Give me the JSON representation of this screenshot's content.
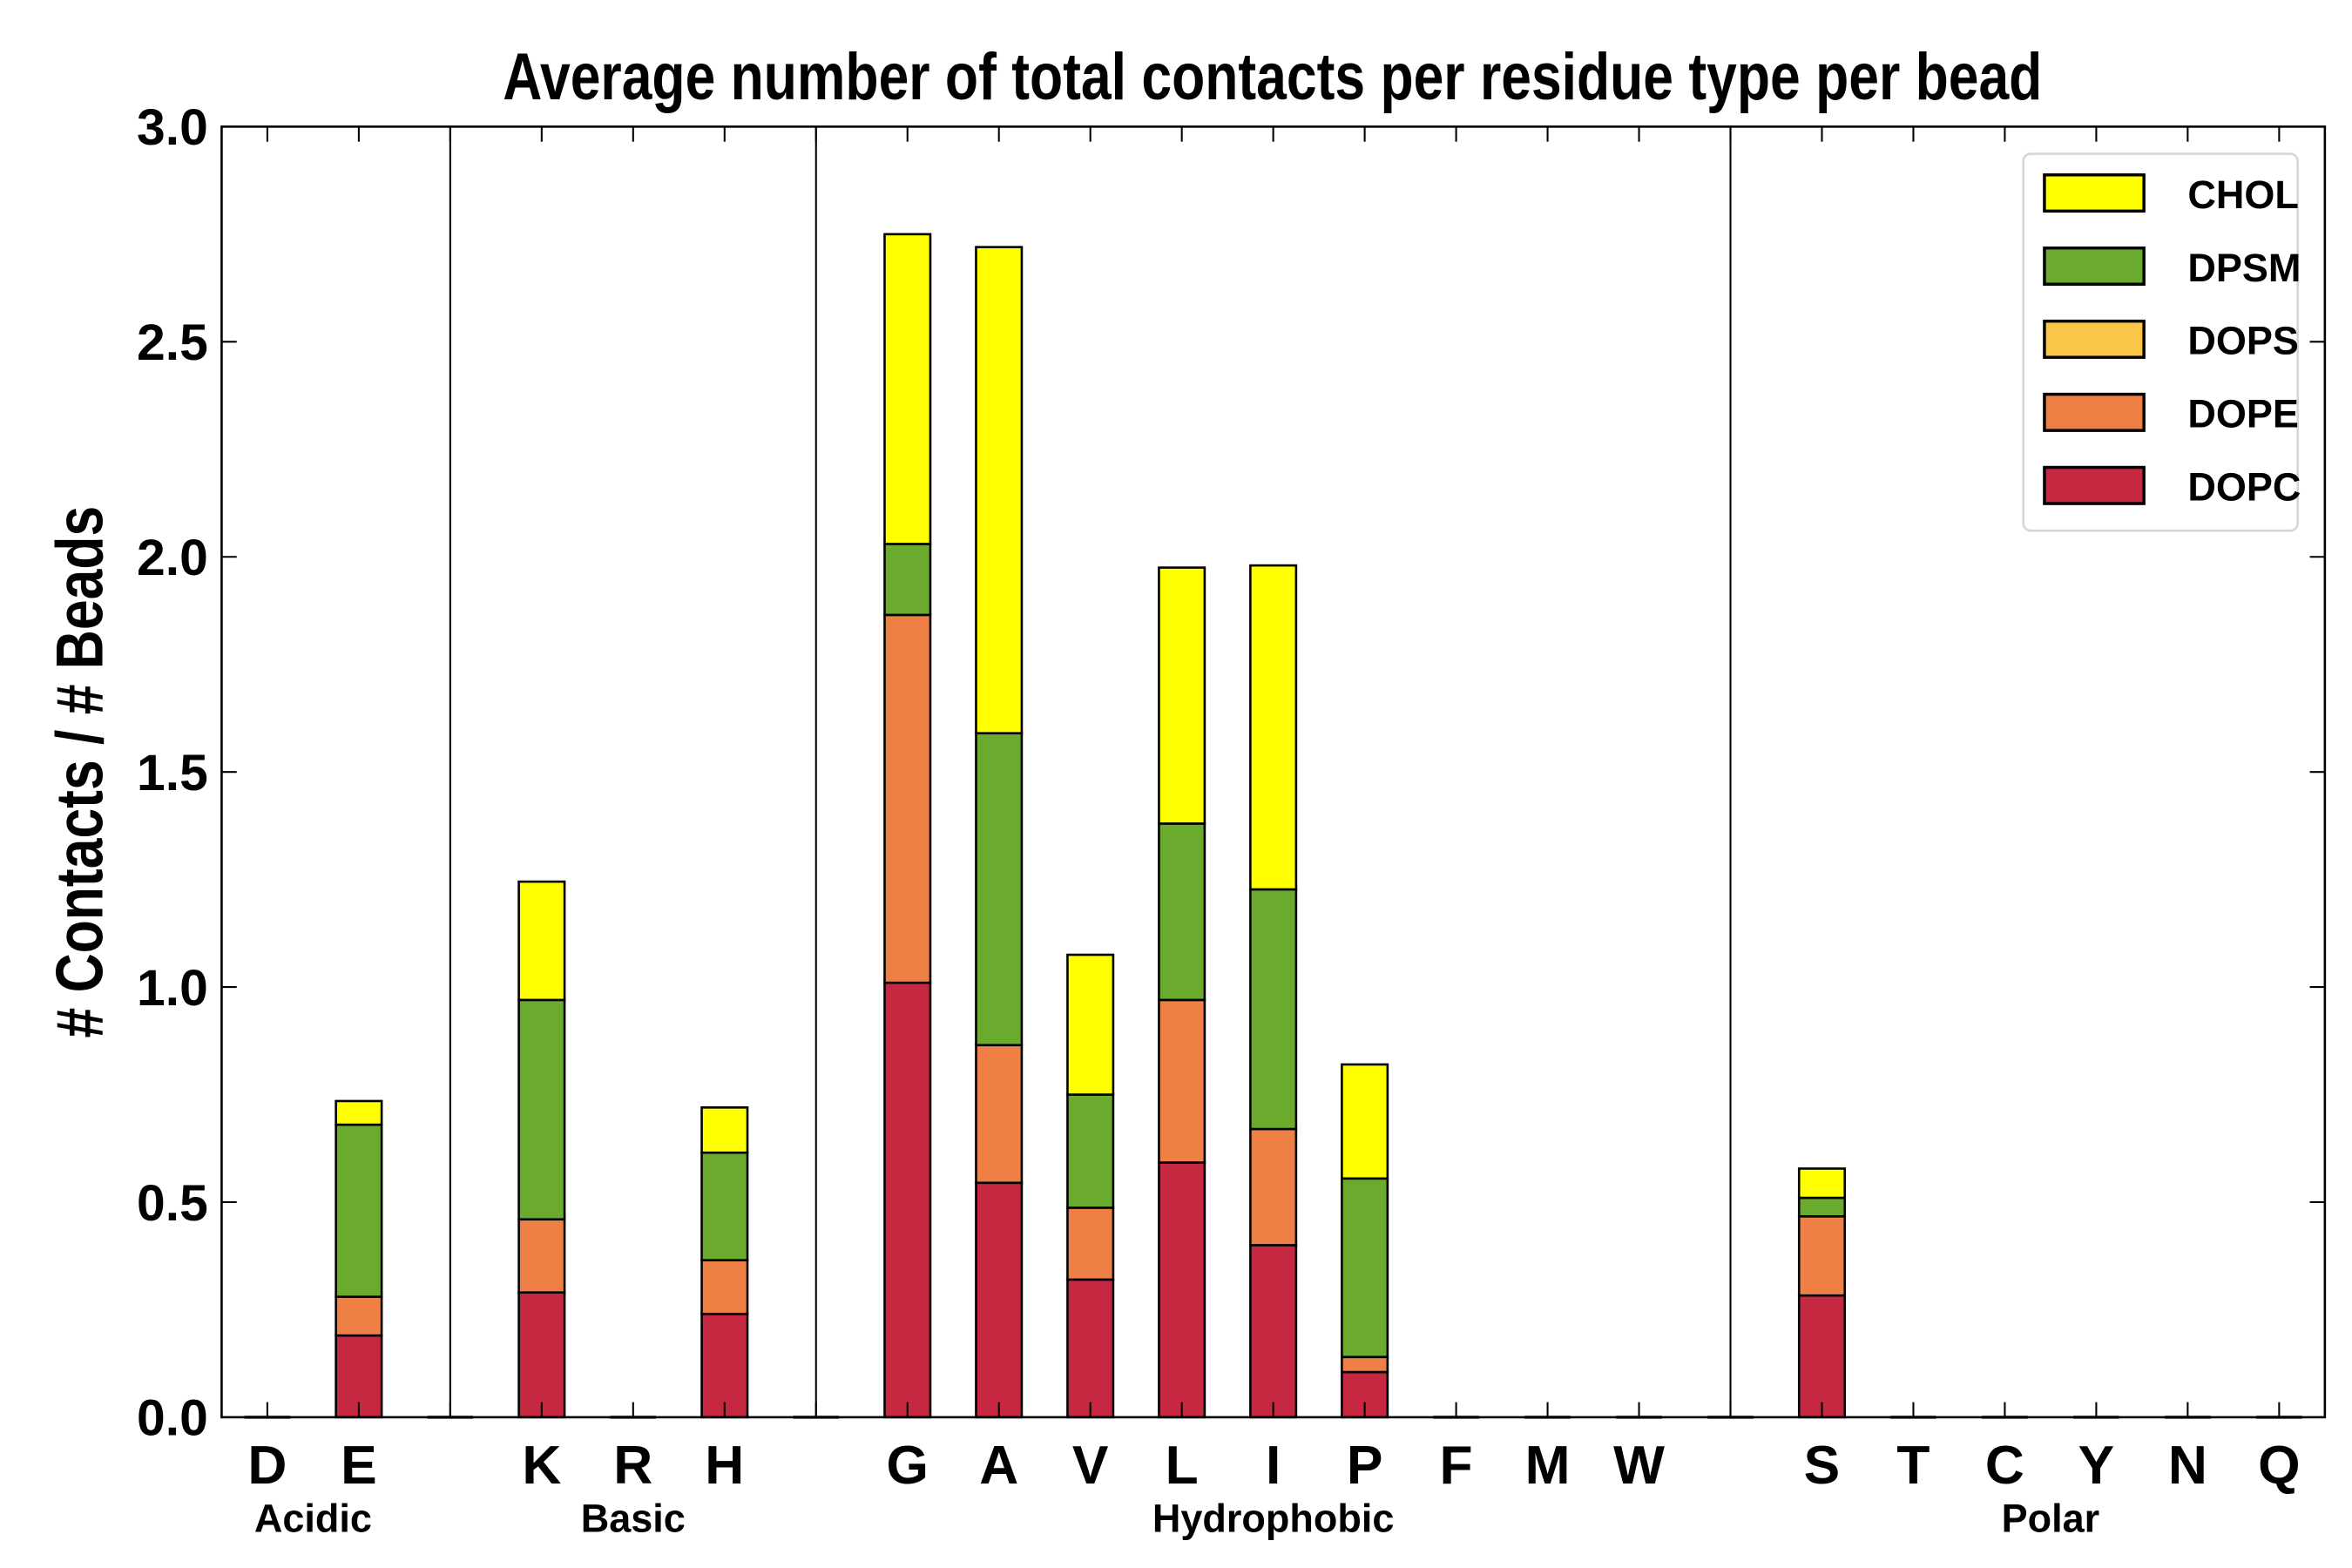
{
  "chart_data": {
    "type": "bar",
    "stacked": true,
    "title": "Average number of total contacts per residue type per bead",
    "xlabel": "",
    "ylabel": "# Contacts / # Beads",
    "ylim": [
      0,
      3.0
    ],
    "yticks": [
      "0.0",
      "0.5",
      "1.0",
      "1.5",
      "2.0",
      "2.5",
      "3.0"
    ],
    "grid": false,
    "legend_position": "top-right",
    "categories": [
      "D",
      "E",
      "",
      "K",
      "R",
      "H",
      "",
      "G",
      "A",
      "V",
      "L",
      "I",
      "P",
      "F",
      "M",
      "W",
      "",
      "S",
      "T",
      "C",
      "Y",
      "N",
      "Q"
    ],
    "separators_after_groups": true,
    "groups": [
      {
        "label": "Acidic",
        "span": [
          0,
          1
        ]
      },
      {
        "label": "Basic",
        "span": [
          3,
          5
        ]
      },
      {
        "label": "Hydrophobic",
        "span": [
          7,
          15
        ]
      },
      {
        "label": "Polar",
        "span": [
          17,
          22
        ]
      }
    ],
    "separator_slots": [
      2,
      6,
      16
    ],
    "series": [
      {
        "name": "DOPC",
        "color": "#c62842",
        "values": [
          0,
          0.19,
          0,
          0.29,
          0,
          0.24,
          0,
          1.01,
          0.545,
          0.32,
          0.592,
          0.4,
          0.105,
          0,
          0,
          0,
          0,
          0.283,
          0,
          0,
          0,
          0,
          0
        ]
      },
      {
        "name": "DOPE",
        "color": "#ef8045",
        "values": [
          0,
          0.09,
          0,
          0.17,
          0,
          0.125,
          0,
          0.855,
          0.32,
          0.167,
          0.378,
          0.27,
          0.035,
          0,
          0,
          0,
          0,
          0.184,
          0,
          0,
          0,
          0,
          0
        ]
      },
      {
        "name": "DOPS",
        "color": "#fbc647",
        "values": [
          0,
          0,
          0,
          0,
          0,
          0,
          0,
          0,
          0,
          0,
          0,
          0,
          0,
          0,
          0,
          0,
          0,
          0,
          0,
          0,
          0,
          0,
          0
        ]
      },
      {
        "name": "DPSM",
        "color": "#6aab2e",
        "values": [
          0,
          0.4,
          0,
          0.51,
          0,
          0.25,
          0,
          0.165,
          0.725,
          0.263,
          0.41,
          0.557,
          0.415,
          0,
          0,
          0,
          0,
          0.043,
          0,
          0,
          0,
          0,
          0
        ]
      },
      {
        "name": "CHOL",
        "color": "#ffff00",
        "values": [
          0,
          0.055,
          0,
          0.275,
          0,
          0.105,
          0,
          0.72,
          1.13,
          0.325,
          0.595,
          0.753,
          0.265,
          0,
          0,
          0,
          0,
          0.068,
          0,
          0,
          0,
          0,
          0
        ]
      }
    ],
    "legend_order": [
      "CHOL",
      "DPSM",
      "DOPS",
      "DOPE",
      "DOPC"
    ]
  }
}
